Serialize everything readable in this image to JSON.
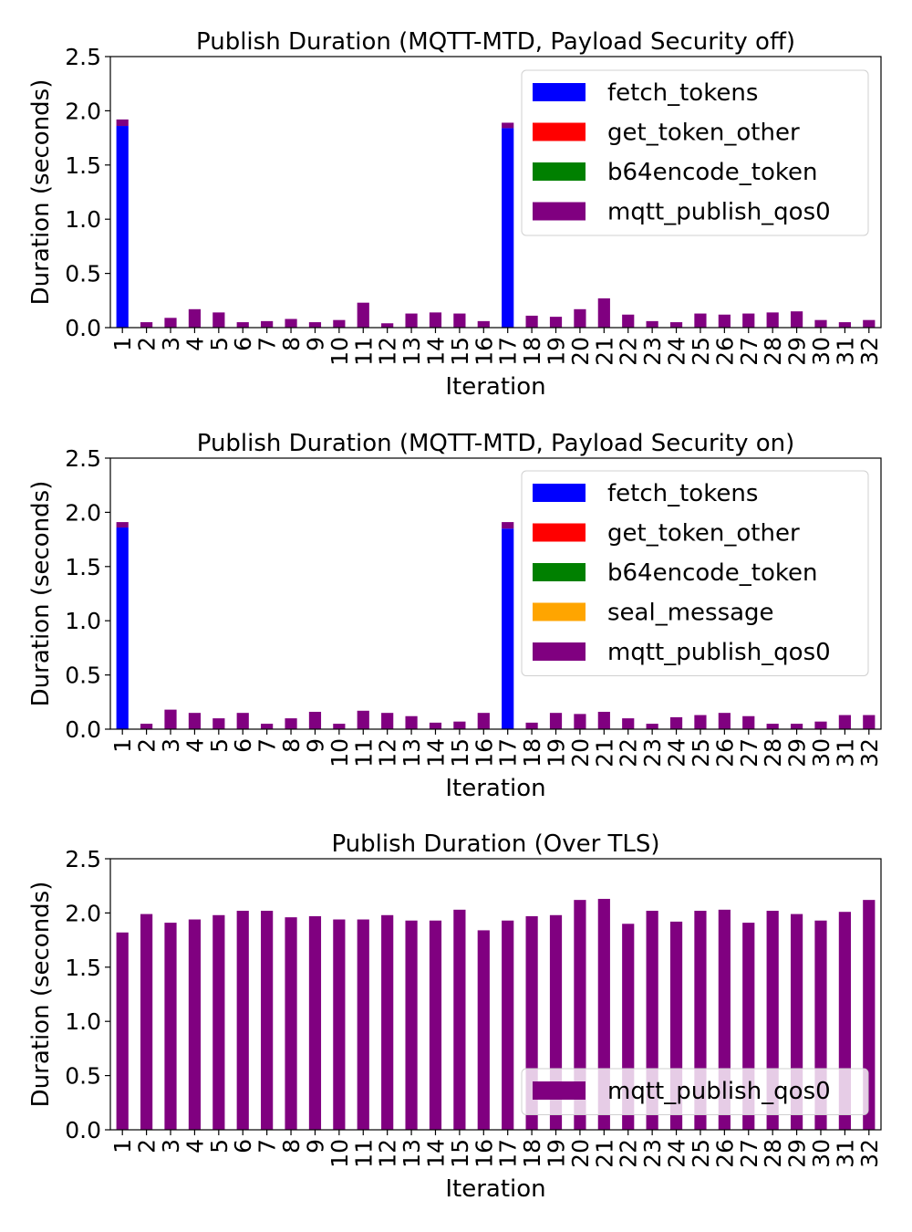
{
  "colors": {
    "fetch_tokens": "#0000ff",
    "get_token_other": "#ff0000",
    "b64encode_token": "#008000",
    "seal_message": "#ffa500",
    "mqtt_publish_qos0": "#800080"
  },
  "chart_data": [
    {
      "type": "bar",
      "stacked": true,
      "title": "Publish Duration (MQTT-MTD, Payload Security off)",
      "xlabel": "Iteration",
      "ylabel": "Duration (seconds)",
      "ylim": [
        0,
        2.5
      ],
      "yticks": [
        "0.0",
        "0.5",
        "1.0",
        "1.5",
        "2.0",
        "2.5"
      ],
      "grid": false,
      "legend_position": "upper right",
      "categories": [
        "1",
        "2",
        "3",
        "4",
        "5",
        "6",
        "7",
        "8",
        "9",
        "10",
        "11",
        "12",
        "13",
        "14",
        "15",
        "16",
        "17",
        "18",
        "19",
        "20",
        "21",
        "22",
        "23",
        "24",
        "25",
        "26",
        "27",
        "28",
        "29",
        "30",
        "31",
        "32"
      ],
      "series": [
        {
          "name": "fetch_tokens",
          "color_key": "fetch_tokens",
          "values": [
            1.86,
            0,
            0,
            0,
            0,
            0,
            0,
            0,
            0,
            0,
            0,
            0,
            0,
            0,
            0,
            0,
            1.84,
            0,
            0,
            0,
            0,
            0,
            0,
            0,
            0,
            0,
            0,
            0,
            0,
            0,
            0,
            0
          ]
        },
        {
          "name": "get_token_other",
          "color_key": "get_token_other",
          "values": [
            0,
            0,
            0,
            0,
            0,
            0,
            0,
            0,
            0,
            0,
            0,
            0,
            0,
            0,
            0,
            0,
            0,
            0,
            0,
            0,
            0,
            0,
            0,
            0,
            0,
            0,
            0,
            0,
            0,
            0,
            0,
            0
          ]
        },
        {
          "name": "b64encode_token",
          "color_key": "b64encode_token",
          "values": [
            0,
            0,
            0,
            0,
            0,
            0,
            0,
            0,
            0,
            0,
            0,
            0,
            0,
            0,
            0,
            0,
            0,
            0,
            0,
            0,
            0,
            0,
            0,
            0,
            0,
            0,
            0,
            0,
            0,
            0,
            0,
            0
          ]
        },
        {
          "name": "mqtt_publish_qos0",
          "color_key": "mqtt_publish_qos0",
          "values": [
            0.06,
            0.05,
            0.09,
            0.17,
            0.14,
            0.05,
            0.06,
            0.08,
            0.05,
            0.07,
            0.23,
            0.04,
            0.13,
            0.14,
            0.13,
            0.06,
            0.05,
            0.11,
            0.1,
            0.17,
            0.27,
            0.12,
            0.06,
            0.05,
            0.13,
            0.12,
            0.13,
            0.14,
            0.15,
            0.07,
            0.05,
            0.07
          ]
        }
      ]
    },
    {
      "type": "bar",
      "stacked": true,
      "title": "Publish Duration (MQTT-MTD, Payload Security on)",
      "xlabel": "Iteration",
      "ylabel": "Duration (seconds)",
      "ylim": [
        0,
        2.5
      ],
      "yticks": [
        "0.0",
        "0.5",
        "1.0",
        "1.5",
        "2.0",
        "2.5"
      ],
      "grid": false,
      "legend_position": "upper right",
      "categories": [
        "1",
        "2",
        "3",
        "4",
        "5",
        "6",
        "7",
        "8",
        "9",
        "10",
        "11",
        "12",
        "13",
        "14",
        "15",
        "16",
        "17",
        "18",
        "19",
        "20",
        "21",
        "22",
        "23",
        "24",
        "25",
        "26",
        "27",
        "28",
        "29",
        "30",
        "31",
        "32"
      ],
      "series": [
        {
          "name": "fetch_tokens",
          "color_key": "fetch_tokens",
          "values": [
            1.86,
            0,
            0,
            0,
            0,
            0,
            0,
            0,
            0,
            0,
            0,
            0,
            0,
            0,
            0,
            0,
            1.85,
            0,
            0,
            0,
            0,
            0,
            0,
            0,
            0,
            0,
            0,
            0,
            0,
            0,
            0,
            0
          ]
        },
        {
          "name": "get_token_other",
          "color_key": "get_token_other",
          "values": [
            0,
            0,
            0,
            0,
            0,
            0,
            0,
            0,
            0,
            0,
            0,
            0,
            0,
            0,
            0,
            0,
            0,
            0,
            0,
            0,
            0,
            0,
            0,
            0,
            0,
            0,
            0,
            0,
            0,
            0,
            0,
            0
          ]
        },
        {
          "name": "b64encode_token",
          "color_key": "b64encode_token",
          "values": [
            0,
            0,
            0,
            0,
            0,
            0,
            0,
            0,
            0,
            0,
            0,
            0,
            0,
            0,
            0,
            0,
            0,
            0,
            0,
            0,
            0,
            0,
            0,
            0,
            0,
            0,
            0,
            0,
            0,
            0,
            0,
            0
          ]
        },
        {
          "name": "seal_message",
          "color_key": "seal_message",
          "values": [
            0,
            0,
            0,
            0,
            0,
            0,
            0,
            0,
            0,
            0,
            0,
            0,
            0,
            0,
            0,
            0,
            0,
            0,
            0,
            0,
            0,
            0,
            0,
            0,
            0,
            0,
            0,
            0,
            0,
            0,
            0,
            0
          ]
        },
        {
          "name": "mqtt_publish_qos0",
          "color_key": "mqtt_publish_qos0",
          "values": [
            0.05,
            0.05,
            0.18,
            0.15,
            0.1,
            0.15,
            0.05,
            0.1,
            0.16,
            0.05,
            0.17,
            0.15,
            0.12,
            0.06,
            0.07,
            0.15,
            0.06,
            0.06,
            0.15,
            0.14,
            0.16,
            0.1,
            0.05,
            0.11,
            0.13,
            0.15,
            0.12,
            0.05,
            0.05,
            0.07,
            0.13,
            0.13
          ]
        }
      ]
    },
    {
      "type": "bar",
      "stacked": true,
      "title": "Publish Duration (Over TLS)",
      "xlabel": "Iteration",
      "ylabel": "Duration (seconds)",
      "ylim": [
        0,
        2.5
      ],
      "yticks": [
        "0.0",
        "0.5",
        "1.0",
        "1.5",
        "2.0",
        "2.5"
      ],
      "grid": false,
      "legend_position": "lower right",
      "categories": [
        "1",
        "2",
        "3",
        "4",
        "5",
        "6",
        "7",
        "8",
        "9",
        "10",
        "11",
        "12",
        "13",
        "14",
        "15",
        "16",
        "17",
        "18",
        "19",
        "20",
        "21",
        "22",
        "23",
        "24",
        "25",
        "26",
        "27",
        "28",
        "29",
        "30",
        "31",
        "32"
      ],
      "series": [
        {
          "name": "mqtt_publish_qos0",
          "color_key": "mqtt_publish_qos0",
          "values": [
            1.82,
            1.99,
            1.91,
            1.94,
            1.98,
            2.02,
            2.02,
            1.96,
            1.97,
            1.94,
            1.94,
            1.98,
            1.93,
            1.93,
            2.03,
            1.84,
            1.93,
            1.97,
            1.98,
            2.12,
            2.13,
            1.9,
            2.02,
            1.92,
            2.02,
            2.03,
            1.91,
            2.02,
            1.99,
            1.93,
            2.01,
            2.12
          ]
        }
      ]
    }
  ]
}
